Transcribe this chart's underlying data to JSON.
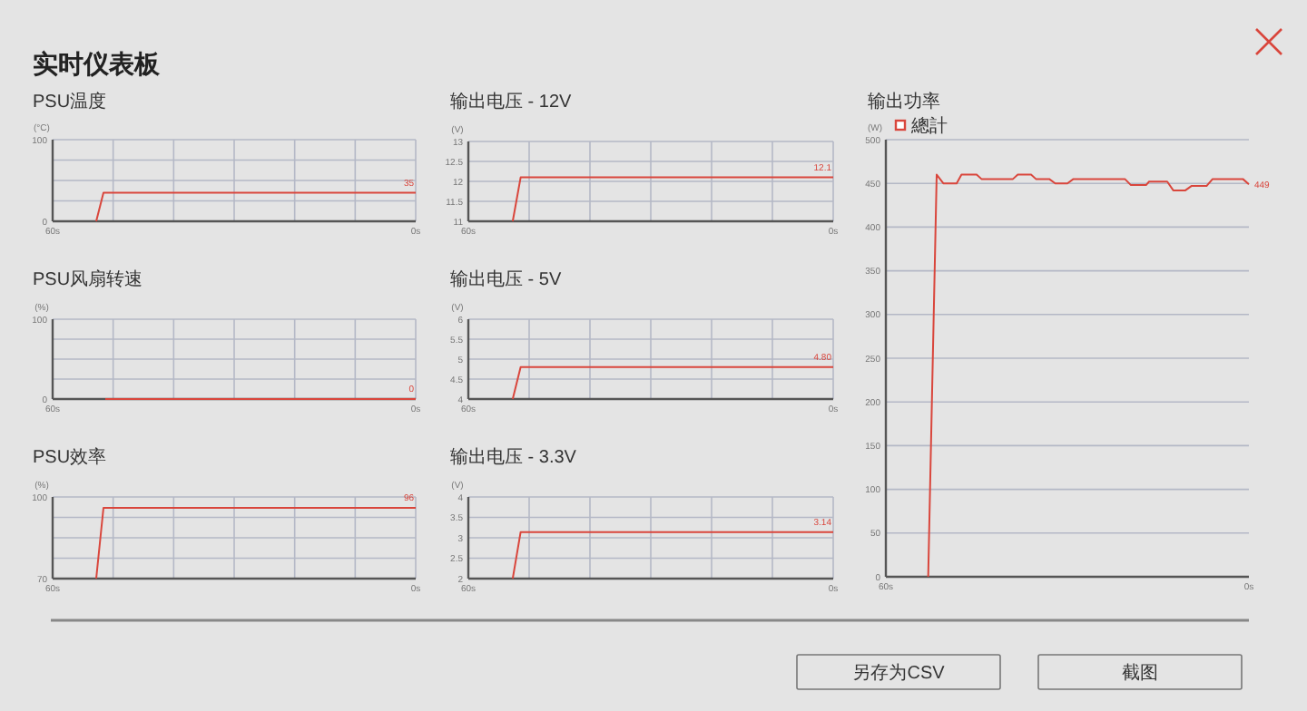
{
  "chart_data": [
    {
      "type": "other",
      "title": "实时仪表板"
    },
    {
      "type": "line",
      "title": "PSU温度",
      "ylabel": "(°C)",
      "xlim": [
        60,
        0
      ],
      "ylim": [
        0,
        100
      ],
      "grid": true,
      "xticks": [
        {
          "value": 60,
          "label": "60s"
        },
        {
          "value": 50,
          "label": null
        },
        {
          "value": 40,
          "label": null
        },
        {
          "value": 30,
          "label": null
        },
        {
          "value": 20,
          "label": null
        },
        {
          "value": 10,
          "label": null
        },
        {
          "value": 0,
          "label": "0s"
        }
      ],
      "yticks": [
        0,
        {
          "value": 25,
          "label": null
        },
        {
          "value": 50,
          "label": null
        },
        {
          "value": 75,
          "label": null
        },
        100
      ],
      "series": [
        {
          "color": "#d9463c",
          "x": [
            52.8,
            51.6,
            0
          ],
          "values": [
            0,
            35,
            35
          ],
          "value_labels": [
            null,
            null,
            "35"
          ]
        }
      ]
    },
    {
      "type": "line",
      "title": "输出电压 - 12V",
      "ylabel": "(V)",
      "xlim": [
        60,
        0
      ],
      "ylim": [
        11,
        13
      ],
      "grid": true,
      "xticks": [
        {
          "value": 60,
          "label": "60s"
        },
        {
          "value": 50,
          "label": null
        },
        {
          "value": 40,
          "label": null
        },
        {
          "value": 30,
          "label": null
        },
        {
          "value": 20,
          "label": null
        },
        {
          "value": 10,
          "label": null
        },
        {
          "value": 0,
          "label": "0s"
        }
      ],
      "yticks": [
        11,
        11.5,
        12,
        12.5,
        13
      ],
      "series": [
        {
          "color": "#d9463c",
          "x": [
            52.7,
            51.4,
            0
          ],
          "values": [
            11,
            12.1,
            12.1
          ],
          "value_labels": [
            null,
            null,
            "12.1"
          ]
        }
      ]
    },
    {
      "type": "line",
      "title": "输出功率",
      "ylabel": "(W)",
      "xlim": [
        60,
        0
      ],
      "ylim": [
        0,
        500
      ],
      "grid": "y",
      "legend": "top left",
      "xticks": [
        {
          "value": 60,
          "label": "60s"
        },
        {
          "value": 0,
          "label": "0s"
        }
      ],
      "yticks": [
        0,
        50,
        100,
        150,
        200,
        250,
        300,
        350,
        400,
        450,
        500
      ],
      "series": [
        {
          "name": "總計",
          "color": "#d9463c",
          "x": [
            53,
            51.6,
            50.5,
            48.3,
            47.5,
            45,
            44.2,
            39,
            38.2,
            36,
            35.2,
            33,
            32,
            30,
            29,
            20.5,
            19.5,
            17,
            16.5,
            13.5,
            12.5,
            10.5,
            9.5,
            7,
            6,
            1,
            0
          ],
          "values": [
            0,
            460,
            450,
            450,
            460,
            460,
            455,
            455,
            460,
            460,
            455,
            455,
            450,
            450,
            455,
            455,
            448,
            448,
            452,
            452,
            442,
            442,
            447,
            447,
            455,
            455,
            449
          ],
          "value_labels": [
            null,
            null,
            null,
            null,
            null,
            null,
            null,
            null,
            null,
            null,
            null,
            null,
            null,
            null,
            null,
            null,
            null,
            null,
            null,
            null,
            null,
            null,
            null,
            null,
            null,
            null,
            "449"
          ]
        }
      ]
    },
    {
      "type": "line",
      "title": "PSU风扇转速",
      "ylabel": "(%)",
      "xlim": [
        60,
        0
      ],
      "ylim": [
        0,
        100
      ],
      "grid": true,
      "xticks": [
        {
          "value": 60,
          "label": "60s"
        },
        {
          "value": 50,
          "label": null
        },
        {
          "value": 40,
          "label": null
        },
        {
          "value": 30,
          "label": null
        },
        {
          "value": 20,
          "label": null
        },
        {
          "value": 10,
          "label": null
        },
        {
          "value": 0,
          "label": "0s"
        }
      ],
      "yticks": [
        0,
        {
          "value": 25,
          "label": null
        },
        {
          "value": 50,
          "label": null
        },
        {
          "value": 75,
          "label": null
        },
        100
      ],
      "series": [
        {
          "color": "#d9463c",
          "x": [
            51.3,
            0
          ],
          "values": [
            0,
            0
          ],
          "value_labels": [
            null,
            "0"
          ]
        }
      ]
    },
    {
      "type": "line",
      "title": "输出电压 - 5V",
      "ylabel": "(V)",
      "xlim": [
        60,
        0
      ],
      "ylim": [
        4,
        6
      ],
      "grid": true,
      "xticks": [
        {
          "value": 60,
          "label": "60s"
        },
        {
          "value": 50,
          "label": null
        },
        {
          "value": 40,
          "label": null
        },
        {
          "value": 30,
          "label": null
        },
        {
          "value": 20,
          "label": null
        },
        {
          "value": 10,
          "label": null
        },
        {
          "value": 0,
          "label": "0s"
        }
      ],
      "yticks": [
        4,
        4.5,
        5,
        5.5,
        6
      ],
      "series": [
        {
          "color": "#d9463c",
          "x": [
            52.7,
            51.4,
            0
          ],
          "values": [
            4,
            4.8,
            4.8
          ],
          "value_labels": [
            null,
            null,
            "4.80"
          ]
        }
      ]
    },
    {
      "type": "line",
      "title": "PSU效率",
      "ylabel": "(%)",
      "xlim": [
        60,
        0
      ],
      "ylim": [
        70,
        100
      ],
      "grid": true,
      "xticks": [
        {
          "value": 60,
          "label": "60s"
        },
        {
          "value": 50,
          "label": null
        },
        {
          "value": 40,
          "label": null
        },
        {
          "value": 30,
          "label": null
        },
        {
          "value": 20,
          "label": null
        },
        {
          "value": 10,
          "label": null
        },
        {
          "value": 0,
          "label": "0s"
        }
      ],
      "yticks": [
        70,
        {
          "value": 77.5,
          "label": null
        },
        {
          "value": 85,
          "label": null
        },
        {
          "value": 92.5,
          "label": null
        },
        100
      ],
      "series": [
        {
          "color": "#d9463c",
          "x": [
            52.8,
            51.6,
            0
          ],
          "values": [
            70,
            96,
            96
          ],
          "value_labels": [
            null,
            null,
            "96"
          ]
        }
      ]
    },
    {
      "type": "line",
      "title": "输出电压 - 3.3V",
      "ylabel": "(V)",
      "xlim": [
        60,
        0
      ],
      "ylim": [
        2,
        4
      ],
      "grid": true,
      "xticks": [
        {
          "value": 60,
          "label": "60s"
        },
        {
          "value": 50,
          "label": null
        },
        {
          "value": 40,
          "label": null
        },
        {
          "value": 30,
          "label": null
        },
        {
          "value": 20,
          "label": null
        },
        {
          "value": 10,
          "label": null
        },
        {
          "value": 0,
          "label": "0s"
        }
      ],
      "yticks": [
        2,
        2.5,
        3,
        3.5,
        4
      ],
      "series": [
        {
          "color": "#d9463c",
          "x": [
            52.7,
            51.4,
            0
          ],
          "values": [
            2,
            3.14,
            3.14
          ],
          "value_labels": [
            null,
            null,
            "3.14"
          ]
        }
      ]
    },
    {
      "type": "other",
      "annotations": [
        "另存为CSV",
        "截图"
      ]
    }
  ]
}
